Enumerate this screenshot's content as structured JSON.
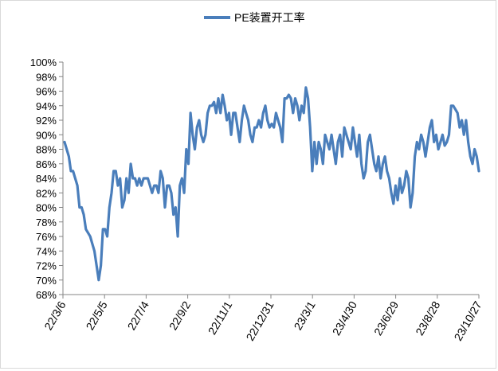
{
  "chart_data": {
    "type": "line",
    "title": "",
    "xlabel": "",
    "ylabel": "",
    "ylim": [
      68,
      100
    ],
    "y_ticks": [
      "68%",
      "70%",
      "72%",
      "74%",
      "76%",
      "78%",
      "80%",
      "82%",
      "84%",
      "86%",
      "88%",
      "90%",
      "92%",
      "94%",
      "96%",
      "98%",
      "100%"
    ],
    "x_ticks": [
      "22/3/6",
      "22/5/5",
      "22/7/4",
      "22/9/2",
      "22/11/1",
      "22/12/31",
      "23/3/1",
      "23/4/30",
      "23/6/29",
      "23/8/28",
      "23/10/27"
    ],
    "grid": false,
    "legend_position": "top",
    "line_color": "#4a7ebb",
    "series": [
      {
        "name": "PE装置开工率",
        "values": [
          89.0,
          88.0,
          87.0,
          85.0,
          85.0,
          84.0,
          83.0,
          80.0,
          80.0,
          79.0,
          77.0,
          76.5,
          76.0,
          75.0,
          74.0,
          72.0,
          70.0,
          72.0,
          77.0,
          77.0,
          76.0,
          80.0,
          82.0,
          85.0,
          85.0,
          83.0,
          84.0,
          80.0,
          81.0,
          84.0,
          82.0,
          86.0,
          84.0,
          84.0,
          83.0,
          84.0,
          83.0,
          84.0,
          84.0,
          84.0,
          83.0,
          82.0,
          83.0,
          83.0,
          82.0,
          85.0,
          84.0,
          80.0,
          83.0,
          83.0,
          82.0,
          79.0,
          80.0,
          76.0,
          83.0,
          84.0,
          82.0,
          88.0,
          86.0,
          93.0,
          90.0,
          88.0,
          91.0,
          92.0,
          90.0,
          89.0,
          90.0,
          93.0,
          94.0,
          94.0,
          94.5,
          93.0,
          95.0,
          93.0,
          95.5,
          94.0,
          92.0,
          93.0,
          90.0,
          93.0,
          93.0,
          91.0,
          89.0,
          92.0,
          94.0,
          93.0,
          92.0,
          90.0,
          89.0,
          91.0,
          91.0,
          92.0,
          91.0,
          93.0,
          94.0,
          92.0,
          91.0,
          91.5,
          91.0,
          93.0,
          92.0,
          91.0,
          89.0,
          95.0,
          95.0,
          95.5,
          95.0,
          93.0,
          95.0,
          94.0,
          92.0,
          94.0,
          93.0,
          96.5,
          95.0,
          91.0,
          85.0,
          89.0,
          86.0,
          89.0,
          88.0,
          86.0,
          90.0,
          89.0,
          88.0,
          90.0,
          88.0,
          86.0,
          89.0,
          90.0,
          87.0,
          91.0,
          90.0,
          89.0,
          88.0,
          91.0,
          89.0,
          87.0,
          90.0,
          86.0,
          84.0,
          85.0,
          89.0,
          90.0,
          88.0,
          86.0,
          85.0,
          87.0,
          84.0,
          86.0,
          87.0,
          85.0,
          84.0,
          82.0,
          80.5,
          83.0,
          81.0,
          84.0,
          82.0,
          83.0,
          85.0,
          84.0,
          80.0,
          82.0,
          87.0,
          89.0,
          88.0,
          90.0,
          89.0,
          87.0,
          89.0,
          91.0,
          92.0,
          89.0,
          90.0,
          88.0,
          89.0,
          90.0,
          88.5,
          89.0,
          90.0,
          94.0,
          94.0,
          93.5,
          93.0,
          91.0,
          92.0,
          90.0,
          92.0,
          89.0,
          87.0,
          86.0,
          88.0,
          87.0,
          85.0
        ]
      }
    ]
  }
}
